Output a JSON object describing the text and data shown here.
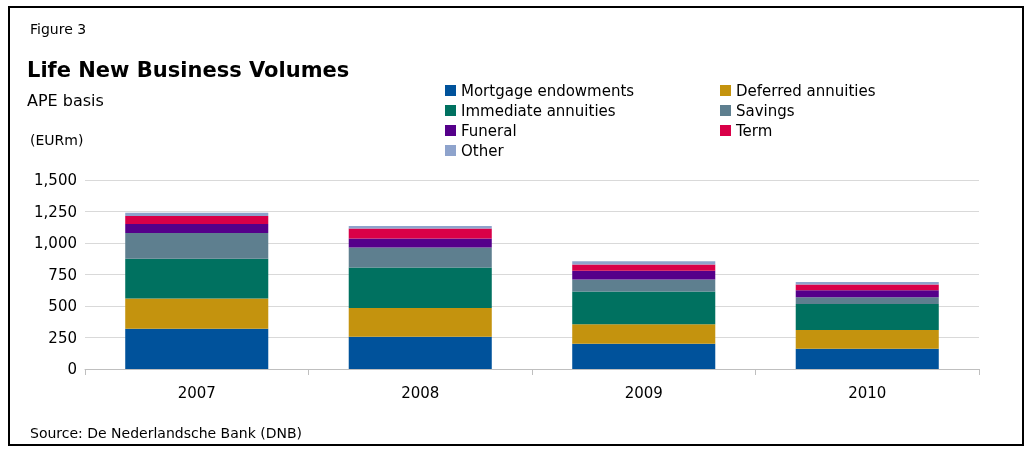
{
  "chart_data": {
    "type": "bar",
    "stacked": true,
    "title": "Life New Business Volumes",
    "subtitle": "APE basis",
    "ylabel": "(EURm)",
    "annotations": [
      "Figure 3",
      "Source: De Nederlandsche Bank (DNB)"
    ],
    "categories": [
      "2007",
      "2008",
      "2009",
      "2010"
    ],
    "series": [
      {
        "name": "Mortgage endowments",
        "color": "#00529b",
        "values": [
          320,
          255,
          200,
          160
        ]
      },
      {
        "name": "Deferred annuities",
        "color": "#c4930e",
        "values": [
          240,
          230,
          155,
          150
        ]
      },
      {
        "name": "Immediate annuities",
        "color": "#007160",
        "values": [
          315,
          320,
          260,
          205
        ]
      },
      {
        "name": "Savings",
        "color": "#5e7f8f",
        "values": [
          205,
          160,
          95,
          55
        ]
      },
      {
        "name": "Funeral",
        "color": "#55008a",
        "values": [
          70,
          70,
          70,
          55
        ]
      },
      {
        "name": "Term",
        "color": "#d90048",
        "values": [
          65,
          80,
          50,
          45
        ]
      },
      {
        "name": "Other",
        "color": "#8ea3cc",
        "values": [
          25,
          20,
          25,
          20
        ]
      }
    ],
    "ylim": [
      0,
      1500
    ],
    "yticks": [
      0,
      250,
      500,
      750,
      {
        "value": 1000,
        "label": "1,000"
      },
      {
        "value": 1250,
        "label": "1,250"
      },
      {
        "value": 1500,
        "label": "1,500"
      }
    ],
    "grid": "y",
    "legend": "top right"
  }
}
